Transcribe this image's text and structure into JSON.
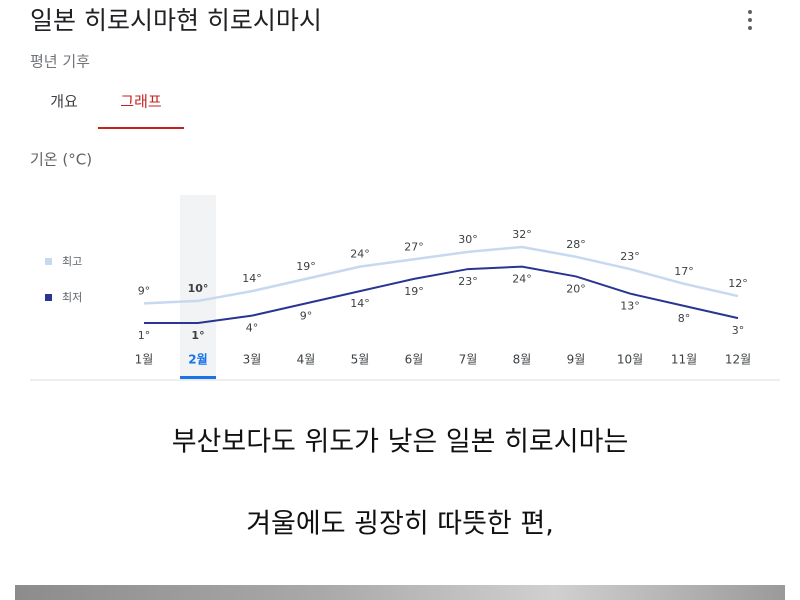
{
  "header": {
    "title": "일본 히로시마현 히로시마시",
    "subtitle": "평년 기후"
  },
  "tabs": [
    "개요",
    "그래프"
  ],
  "active_tab": 1,
  "chart_data": {
    "type": "line",
    "y_label": "기온 (°C)",
    "categories": [
      "1월",
      "2월",
      "3월",
      "4월",
      "5월",
      "6월",
      "7월",
      "8월",
      "9월",
      "10월",
      "11월",
      "12월"
    ],
    "selected_index": 1,
    "series": [
      {
        "name": "최고",
        "color": "#c6d9f0",
        "values": [
          9,
          10,
          14,
          19,
          24,
          27,
          30,
          32,
          28,
          23,
          17,
          12
        ],
        "value_labels": [
          "9°",
          "10°",
          "14°",
          "19°",
          "24°",
          "27°",
          "30°",
          "32°",
          "28°",
          "23°",
          "17°",
          "12°"
        ]
      },
      {
        "name": "최저",
        "color": "#283593",
        "values": [
          1,
          1,
          4,
          9,
          14,
          19,
          23,
          24,
          20,
          13,
          8,
          3
        ],
        "value_labels": [
          "1°",
          "1°",
          "4°",
          "9°",
          "14°",
          "19°",
          "23°",
          "24°",
          "20°",
          "13°",
          "8°",
          "3°"
        ]
      }
    ]
  },
  "caption": [
    "부산보다도 위도가 낮은 일본 히로시마는",
    "겨울에도 굉장히 따뜻한 편,"
  ]
}
